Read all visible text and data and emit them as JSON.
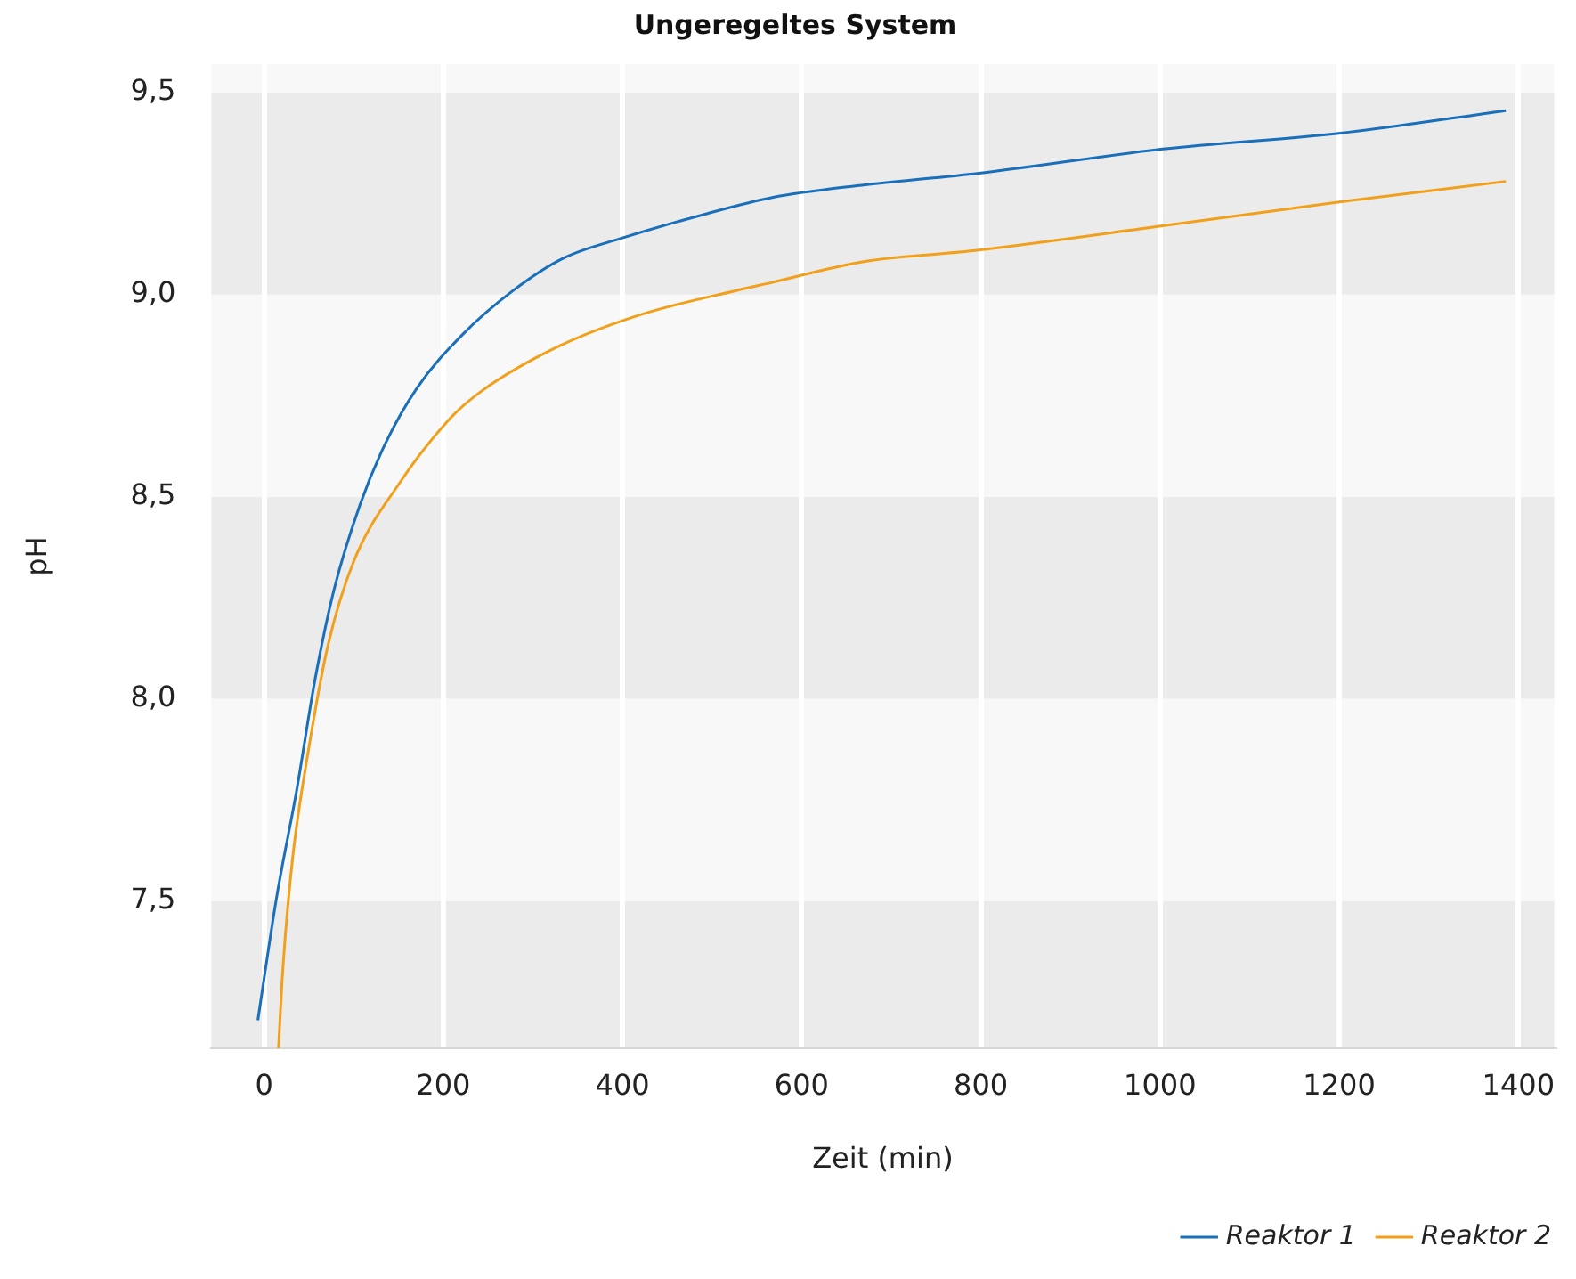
{
  "chart_data": {
    "type": "line",
    "title": "Ungeregeltes System",
    "xlabel": "Zeit (min)",
    "ylabel": "pH",
    "xlim": [
      -59,
      1440
    ],
    "xticks": [
      0,
      200,
      400,
      600,
      800,
      1000,
      1200,
      1400
    ],
    "ylim": [
      7.135,
      9.57
    ],
    "yticks": [
      {
        "value": 7.5,
        "label": "7,5"
      },
      {
        "value": 8.0,
        "label": "8,0"
      },
      {
        "value": 8.5,
        "label": "8,5"
      },
      {
        "value": 9.0,
        "label": "9,0"
      },
      {
        "value": 9.5,
        "label": "9,5"
      }
    ],
    "grid": true,
    "legend": "bottom right",
    "marker": "none",
    "line_style": "solid",
    "series": [
      {
        "name": "Reaktor 1",
        "color": "#1a6fba",
        "x": [
          -7,
          14,
          36,
          57,
          78,
          107,
          135,
          171,
          221,
          278,
          334,
          400,
          494,
          567,
          665,
          798,
          1003,
          1204,
          1386
        ],
        "values": [
          7.205,
          7.51,
          7.77,
          8.05,
          8.27,
          8.48,
          8.63,
          8.77,
          8.9,
          9.01,
          9.09,
          9.14,
          9.2,
          9.24,
          9.27,
          9.3,
          9.36,
          9.4,
          9.455
        ]
      },
      {
        "name": "Reaktor 2",
        "color": "#f0a01a",
        "x": [
          16,
          21,
          32,
          50,
          71,
          100,
          150,
          206,
          242,
          327,
          420,
          527,
          567,
          665,
          798,
          1003,
          1204,
          1386
        ],
        "values": [
          7.135,
          7.335,
          7.61,
          7.88,
          8.13,
          8.34,
          8.53,
          8.69,
          8.76,
          8.87,
          8.95,
          9.01,
          9.03,
          9.08,
          9.11,
          9.17,
          9.23,
          9.28
        ]
      }
    ]
  }
}
